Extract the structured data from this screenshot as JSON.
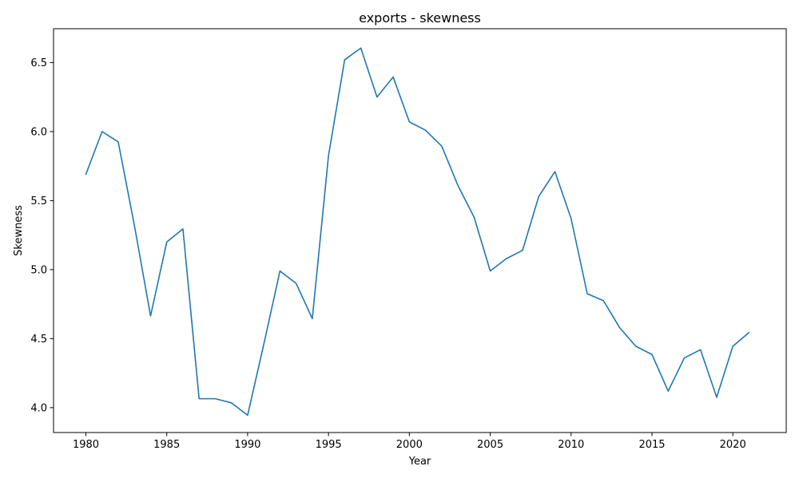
{
  "chart_data": {
    "type": "line",
    "title": "exports - skewness",
    "xlabel": "Year",
    "ylabel": "Skewness",
    "xlim": [
      1978,
      2023.3
    ],
    "ylim": [
      3.82,
      6.745
    ],
    "xticks": [
      1980,
      1985,
      1990,
      1995,
      2000,
      2005,
      2010,
      2015,
      2020
    ],
    "yticks": [
      4.0,
      4.5,
      5.0,
      5.5,
      6.0,
      6.5
    ],
    "ytick_labels": [
      "4.0",
      "4.5",
      "5.0",
      "5.5",
      "6.0",
      "6.5"
    ],
    "grid": false,
    "line_color": "#1f77b4",
    "x": [
      1980,
      1981,
      1982,
      1983,
      1984,
      1985,
      1986,
      1987,
      1988,
      1989,
      1990,
      1991,
      1992,
      1993,
      1994,
      1995,
      1996,
      1997,
      1998,
      1999,
      2000,
      2001,
      2002,
      2003,
      2004,
      2005,
      2006,
      2007,
      2008,
      2009,
      2010,
      2011,
      2012,
      2013,
      2014,
      2015,
      2016,
      2017,
      2018,
      2019,
      2020,
      2021
    ],
    "values": [
      5.69,
      6.0,
      5.925,
      5.32,
      4.665,
      5.2,
      5.295,
      4.065,
      4.065,
      4.035,
      3.945,
      4.46,
      4.99,
      4.9,
      4.645,
      5.825,
      6.52,
      6.605,
      6.25,
      6.395,
      6.07,
      6.01,
      5.895,
      5.61,
      5.38,
      4.99,
      5.08,
      5.14,
      5.53,
      5.71,
      5.37,
      4.825,
      4.775,
      4.58,
      4.445,
      4.385,
      4.12,
      4.36,
      4.42,
      4.075,
      4.445,
      4.545
    ]
  }
}
